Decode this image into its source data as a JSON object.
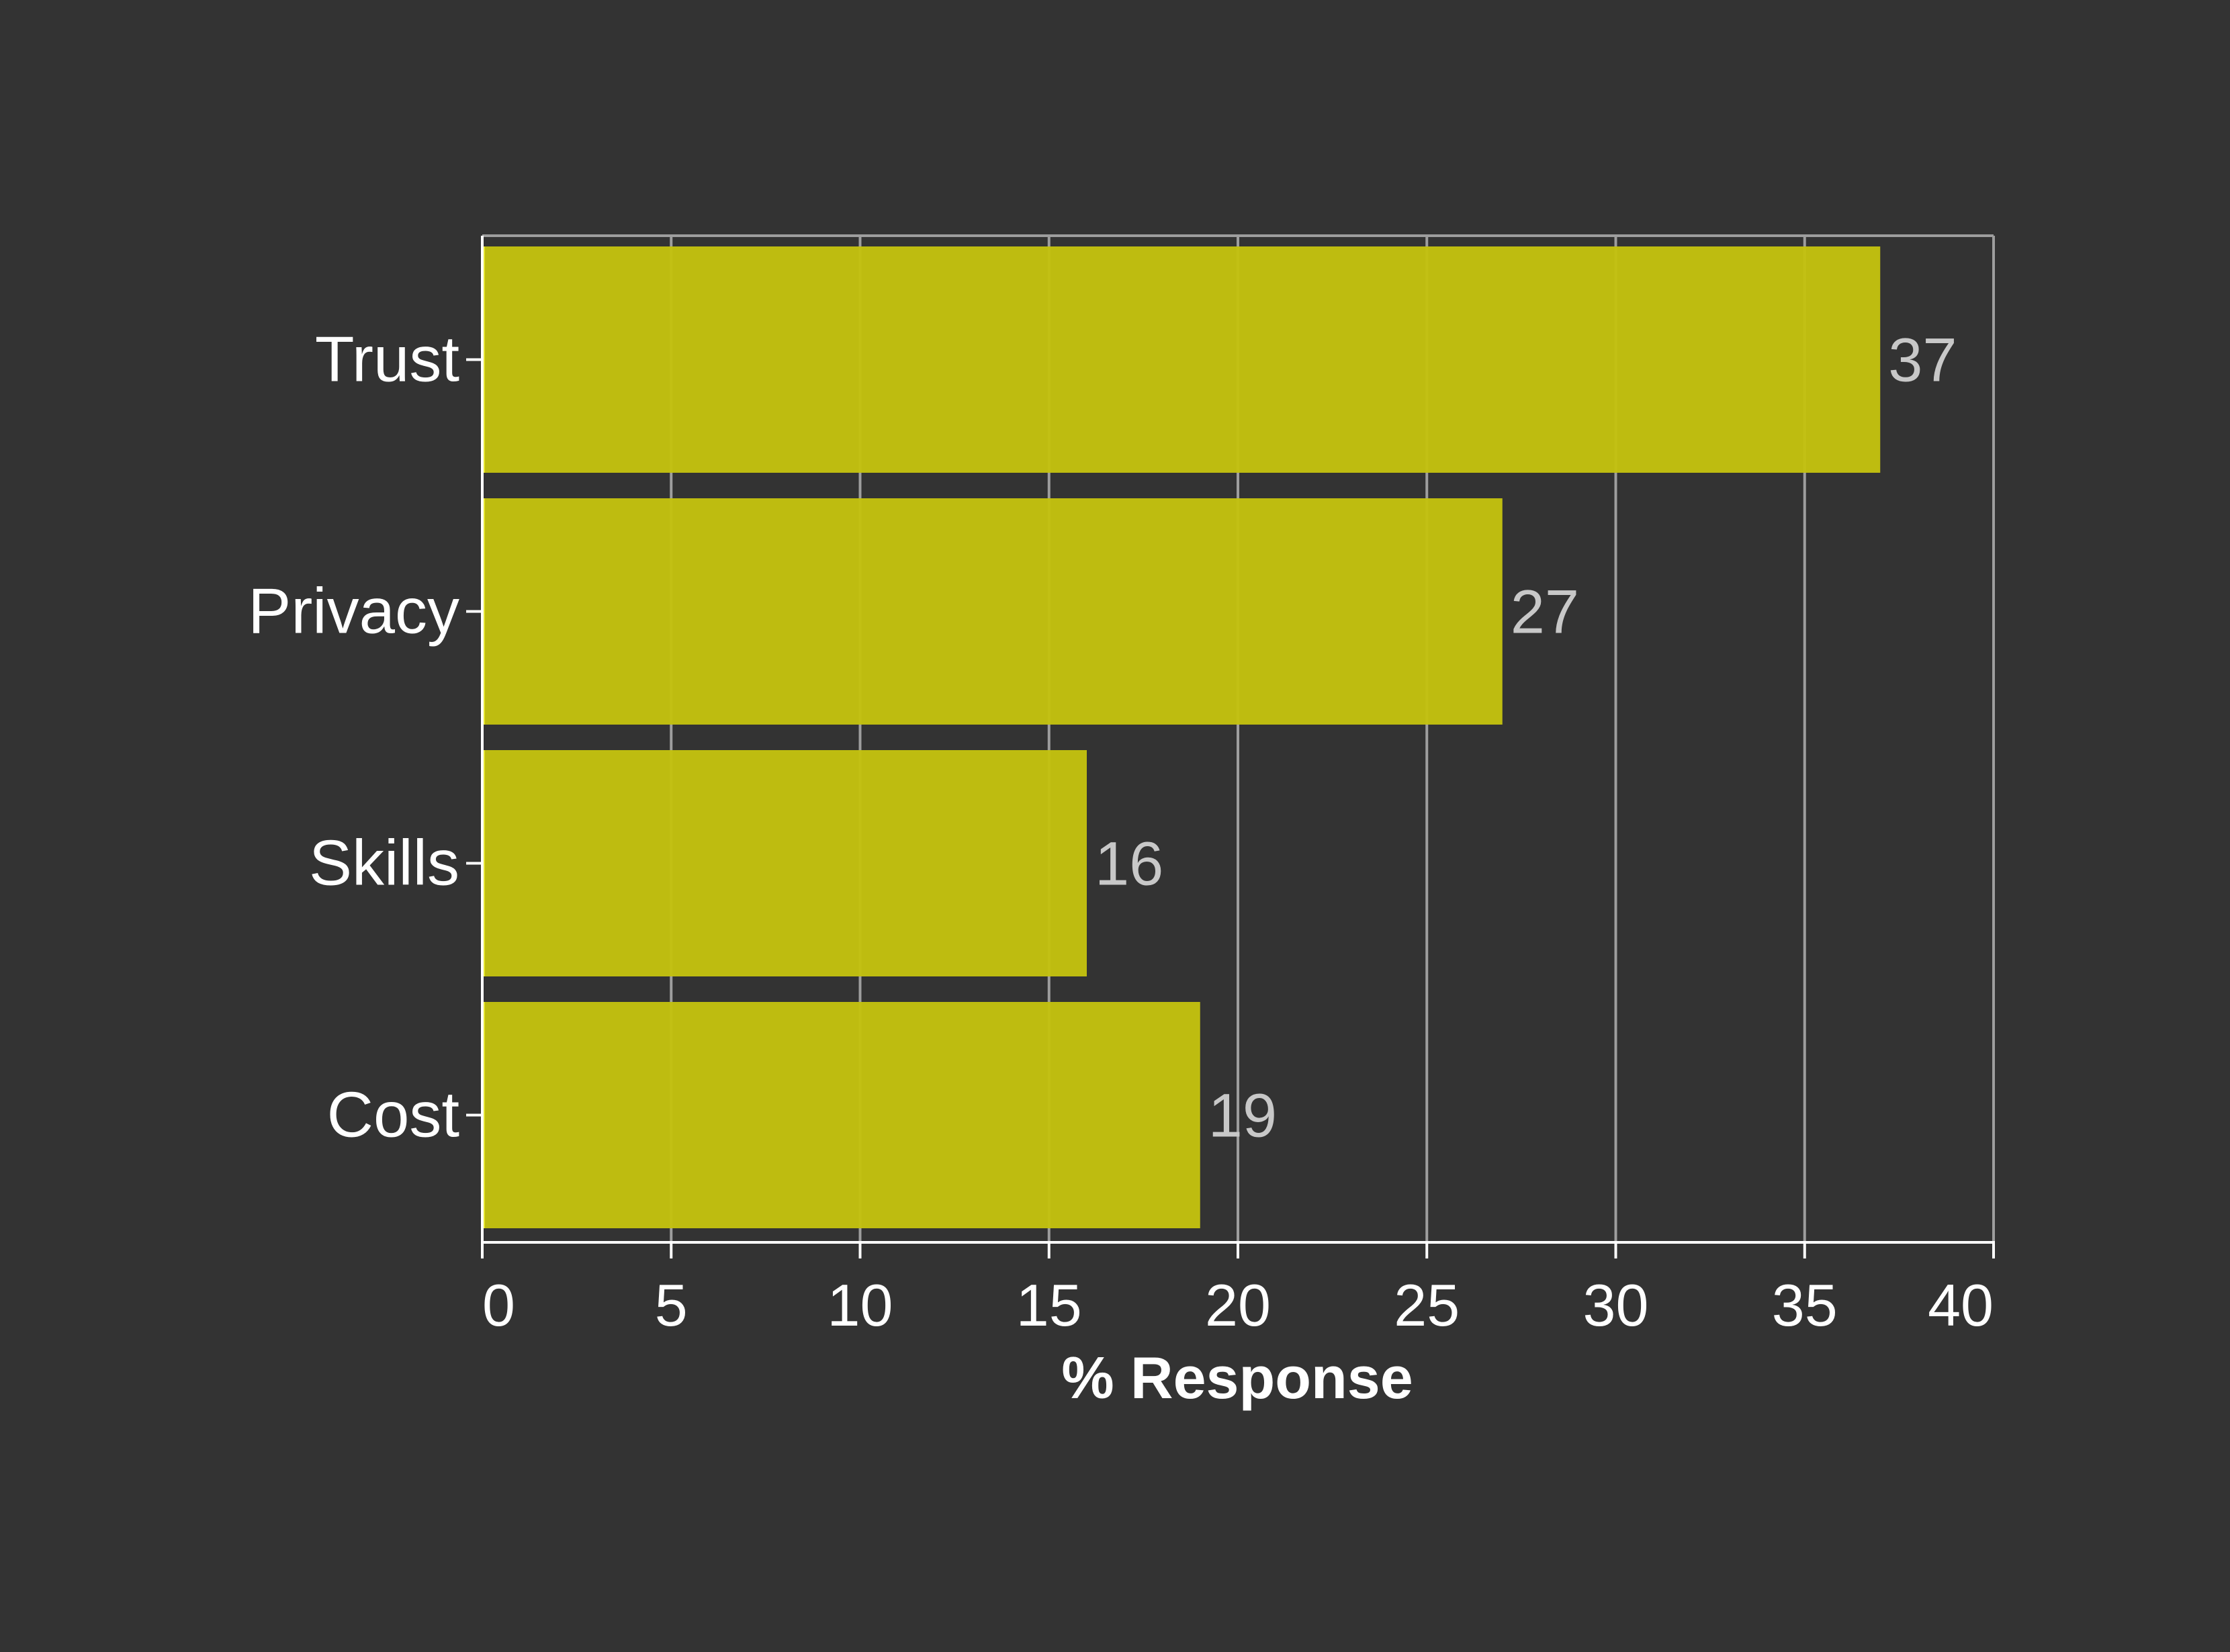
{
  "chart_data": {
    "type": "bar",
    "orientation": "horizontal",
    "categories": [
      "Trust",
      "Privacy",
      "Skills",
      "Cost"
    ],
    "values": [
      37,
      27,
      16,
      19
    ],
    "data_labels": [
      "37",
      "27",
      "16",
      "19"
    ],
    "title": "",
    "xlabel": "% Response",
    "ylabel": "",
    "xlim": [
      0,
      40
    ],
    "x_ticks": [
      0,
      5,
      10,
      15,
      20,
      25,
      30,
      35,
      40
    ],
    "x_tick_labels": [
      "0",
      "5",
      "10",
      "15",
      "20",
      "25",
      "30",
      "35",
      "40"
    ],
    "grid": "vertical",
    "legend": "none",
    "colors": {
      "background": "#333333",
      "bar": "#c4c20f",
      "bar_edge": "#e6e62e",
      "grid": "#9e9e9e",
      "axis": "#ffffff",
      "tick_label": "#ffffff",
      "data_label": "#c8c8c8"
    }
  }
}
